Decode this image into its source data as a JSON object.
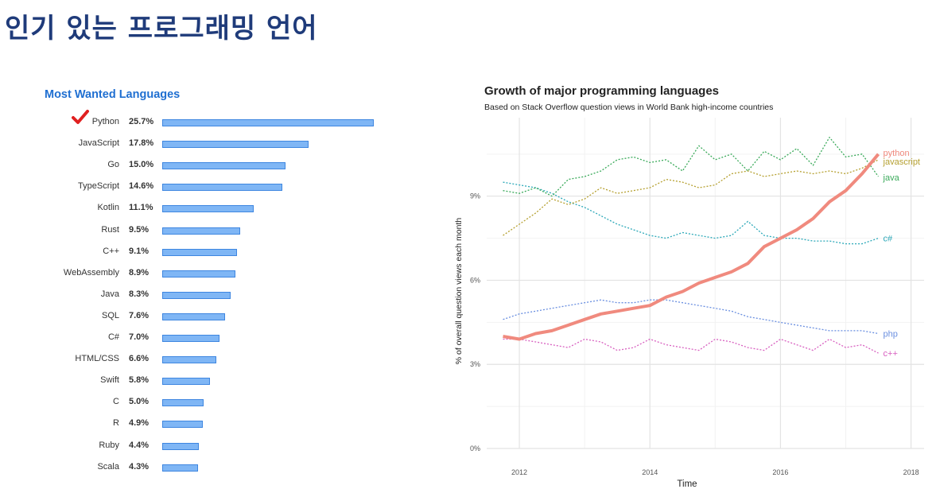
{
  "slide": {
    "title": "인기 있는 프로그래밍 언어"
  },
  "colors": {
    "bar_fill": "#7fb6f5",
    "bar_border": "#3e86e0",
    "left_title": "#1f6fd1",
    "check": "#e02020",
    "slide_title": "#1f3b7a"
  },
  "icons": {
    "check": "checkmark-icon"
  },
  "chart_data": [
    {
      "type": "bar",
      "orientation": "horizontal",
      "title": "Most Wanted Languages",
      "highlight": "Python",
      "categories": [
        "Python",
        "JavaScript",
        "Go",
        "TypeScript",
        "Kotlin",
        "Rust",
        "C++",
        "WebAssembly",
        "Java",
        "SQL",
        "C#",
        "HTML/CSS",
        "Swift",
        "C",
        "R",
        "Ruby",
        "Scala"
      ],
      "labels": [
        "25.7%",
        "17.8%",
        "15.0%",
        "14.6%",
        "11.1%",
        "9.5%",
        "9.1%",
        "8.9%",
        "8.3%",
        "7.6%",
        "7.0%",
        "6.6%",
        "5.8%",
        "5.0%",
        "4.9%",
        "4.4%",
        "4.3%"
      ],
      "values": [
        25.7,
        17.8,
        15.0,
        14.6,
        11.1,
        9.5,
        9.1,
        8.9,
        8.3,
        7.6,
        7.0,
        6.6,
        5.8,
        5.0,
        4.9,
        4.4,
        4.3
      ]
    },
    {
      "type": "line",
      "title": "Growth of major programming languages",
      "subtitle": "Based on Stack Overflow question views in World Bank high-income countries",
      "xlabel": "Time",
      "ylabel": "% of overall question views each month",
      "xlim": [
        2011.5,
        2018.2
      ],
      "ylim": [
        0,
        11.8
      ],
      "xticks": [
        2012,
        2014,
        2016,
        2018
      ],
      "yticks": [
        0,
        3,
        6,
        9
      ],
      "ytick_labels": [
        "0%",
        "3%",
        "6%",
        "9%"
      ],
      "grid": true,
      "legend": "end-of-line labels",
      "x": [
        2011.75,
        2012,
        2012.25,
        2012.5,
        2012.75,
        2013,
        2013.25,
        2013.5,
        2013.75,
        2014,
        2014.25,
        2014.5,
        2014.75,
        2015,
        2015.25,
        2015.5,
        2015.75,
        2016,
        2016.25,
        2016.5,
        2016.75,
        2017,
        2017.25,
        2017.5
      ],
      "series": [
        {
          "name": "python",
          "color": "#f08a7e",
          "style": "solid",
          "values": [
            4.0,
            3.9,
            4.1,
            4.2,
            4.4,
            4.6,
            4.8,
            4.9,
            5.0,
            5.1,
            5.4,
            5.6,
            5.9,
            6.1,
            6.3,
            6.6,
            7.2,
            7.5,
            7.8,
            8.2,
            8.8,
            9.2,
            9.8,
            10.5
          ]
        },
        {
          "name": "javascript",
          "color": "#b5a030",
          "style": "dotted",
          "values": [
            7.6,
            8.0,
            8.4,
            8.9,
            8.7,
            8.9,
            9.3,
            9.1,
            9.2,
            9.3,
            9.6,
            9.5,
            9.3,
            9.4,
            9.8,
            9.9,
            9.7,
            9.8,
            9.9,
            9.8,
            9.9,
            9.8,
            10.0,
            10.3
          ]
        },
        {
          "name": "java",
          "color": "#3aaa5a",
          "style": "dotted",
          "values": [
            9.2,
            9.1,
            9.3,
            9.0,
            9.6,
            9.7,
            9.9,
            10.3,
            10.4,
            10.2,
            10.3,
            9.9,
            10.8,
            10.3,
            10.5,
            9.9,
            10.6,
            10.3,
            10.7,
            10.1,
            11.1,
            10.4,
            10.5,
            9.7
          ]
        },
        {
          "name": "c#",
          "color": "#2ba8b8",
          "style": "dotted",
          "values": [
            9.5,
            9.4,
            9.3,
            9.1,
            8.8,
            8.6,
            8.3,
            8.0,
            7.8,
            7.6,
            7.5,
            7.7,
            7.6,
            7.5,
            7.6,
            8.1,
            7.6,
            7.5,
            7.5,
            7.4,
            7.4,
            7.3,
            7.3,
            7.5
          ]
        },
        {
          "name": "php",
          "color": "#6a8fe0",
          "style": "dotted",
          "values": [
            4.6,
            4.8,
            4.9,
            5.0,
            5.1,
            5.2,
            5.3,
            5.2,
            5.2,
            5.3,
            5.3,
            5.2,
            5.1,
            5.0,
            4.9,
            4.7,
            4.6,
            4.5,
            4.4,
            4.3,
            4.2,
            4.2,
            4.2,
            4.1
          ]
        },
        {
          "name": "c++",
          "color": "#d860c0",
          "style": "dotted",
          "values": [
            3.9,
            3.9,
            3.8,
            3.7,
            3.6,
            3.9,
            3.8,
            3.5,
            3.6,
            3.9,
            3.7,
            3.6,
            3.5,
            3.9,
            3.8,
            3.6,
            3.5,
            3.9,
            3.7,
            3.5,
            3.9,
            3.6,
            3.7,
            3.4
          ]
        }
      ]
    }
  ]
}
